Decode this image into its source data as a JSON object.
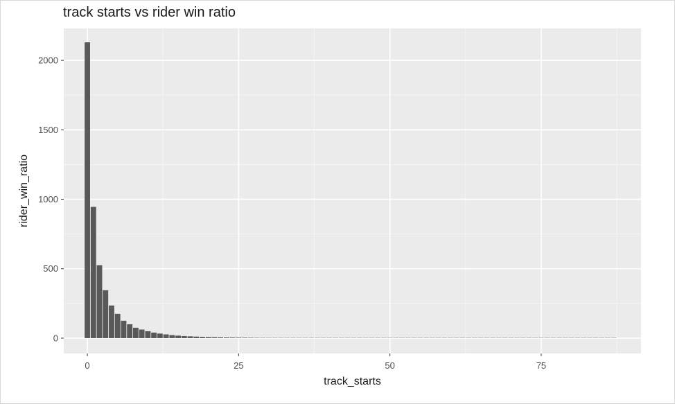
{
  "chart_data": {
    "type": "bar",
    "title": "track starts vs rider win ratio",
    "xlabel": "track_starts",
    "ylabel": "rider_win_ratio",
    "xlim": [
      -3.9,
      91.5
    ],
    "ylim": [
      -110,
      2230
    ],
    "x_ticks": [
      0,
      25,
      50,
      75
    ],
    "y_ticks": [
      0,
      500,
      1000,
      1500,
      2000
    ],
    "x_tick_labels": [
      "0",
      "25",
      "50",
      "75"
    ],
    "y_tick_labels": [
      "0",
      "500",
      "1000",
      "1500",
      "2000"
    ],
    "grid": true,
    "background": "#ebebeb",
    "bar_color": "#595959",
    "x": [
      0,
      1,
      2,
      3,
      4,
      5,
      6,
      7,
      8,
      9,
      10,
      11,
      12,
      13,
      14,
      15,
      16,
      17,
      18,
      19,
      20,
      21,
      22,
      23,
      24,
      25,
      26,
      27,
      28,
      29,
      30,
      31,
      32,
      33,
      34,
      35,
      36,
      37,
      38,
      39,
      40,
      41,
      42,
      43,
      44,
      45,
      46,
      47,
      48,
      49,
      50,
      51,
      52,
      53,
      54,
      55,
      56,
      57,
      58,
      59,
      60,
      61,
      62,
      63,
      64,
      65,
      66,
      67,
      68,
      69,
      70,
      71,
      72,
      73,
      74,
      75,
      76,
      77,
      78,
      79,
      80,
      81,
      82,
      83,
      84,
      85,
      86,
      87
    ],
    "values": [
      2130,
      945,
      525,
      345,
      235,
      175,
      125,
      100,
      75,
      62,
      50,
      40,
      33,
      27,
      22,
      18,
      15,
      13,
      11,
      9,
      8,
      7,
      6,
      5,
      4.5,
      4,
      3.5,
      3,
      2.5,
      2.2,
      2,
      1.8,
      1.6,
      1.4,
      1.2,
      1.1,
      1,
      0.9,
      0.8,
      0.7,
      0.6,
      0.5,
      0.5,
      0.4,
      0.4,
      0.3,
      0.3,
      0.3,
      0.2,
      0.2,
      0.2,
      0.2,
      0.2,
      0.1,
      0.1,
      0.1,
      0.1,
      0.1,
      0.1,
      0.1,
      0.1,
      0.1,
      0.1,
      0.1,
      0.1,
      0.1,
      0.1,
      0.1,
      0.1,
      0.1,
      0.1,
      0.1,
      0.1,
      0.1,
      0.1,
      0.1,
      0.1,
      0.1,
      0.1,
      0.1,
      0.1,
      0.1,
      0.1,
      0.1,
      0.1,
      0.1,
      0.1,
      0.1
    ]
  }
}
